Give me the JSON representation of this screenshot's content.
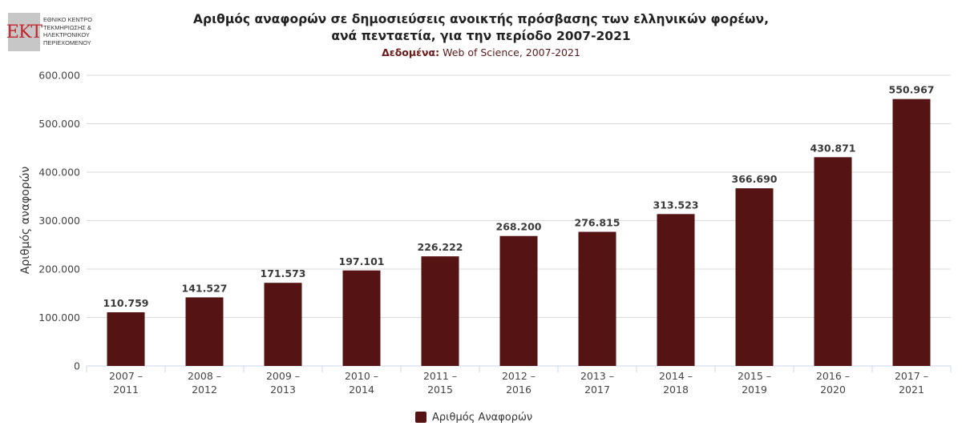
{
  "logo": {
    "mark": "EKT",
    "lines": [
      "ΕΘΝΙΚΟ ΚΕΝΤΡΟ",
      "ΤΕΚΜΗΡΙΩΣΗΣ &",
      "ΗΛΕΚΤΡΟΝΙΚΟΥ",
      "ΠΕΡΙΕΧΟΜΕΝΟΥ"
    ]
  },
  "colors": {
    "bar": "#561314",
    "grid": "#d9d9d9",
    "axis": "#ccd6eb"
  },
  "chart_data": {
    "type": "bar",
    "title_line1": "Αριθμός αναφορών σε δημοσιεύσεις ανοικτής πρόσβασης των ελληνικών φορέων,",
    "title_line2": "ανά πενταετία, για την περίοδο 2007-2021",
    "subtitle_label": "Δεδομένα:",
    "subtitle_text": "Web of Science, 2007-2021",
    "ylabel": "Αριθμός αναφορών",
    "ylim": [
      0,
      600000
    ],
    "yticks": [
      {
        "value": 0,
        "label": "0"
      },
      {
        "value": 100000,
        "label": "100.000"
      },
      {
        "value": 200000,
        "label": "200.000"
      },
      {
        "value": 300000,
        "label": "300.000"
      },
      {
        "value": 400000,
        "label": "400.000"
      },
      {
        "value": 500000,
        "label": "500.000"
      },
      {
        "value": 600000,
        "label": "600.000"
      }
    ],
    "categories": [
      [
        "2007 –",
        "2011"
      ],
      [
        "2008 –",
        "2012"
      ],
      [
        "2009 –",
        "2013"
      ],
      [
        "2010 –",
        "2014"
      ],
      [
        "2011 –",
        "2015"
      ],
      [
        "2012 –",
        "2016"
      ],
      [
        "2013 –",
        "2017"
      ],
      [
        "2014 –",
        "2018"
      ],
      [
        "2015 –",
        "2019"
      ],
      [
        "2016 –",
        "2020"
      ],
      [
        "2017 –",
        "2021"
      ]
    ],
    "series": [
      {
        "name": "Αριθμός Αναφορών",
        "values": [
          110759,
          141527,
          171573,
          197101,
          226222,
          268200,
          276815,
          313523,
          366690,
          430871,
          550967
        ],
        "labels": [
          "110.759",
          "141.527",
          "171.573",
          "197.101",
          "226.222",
          "268.200",
          "276.815",
          "313.523",
          "366.690",
          "430.871",
          "550.967"
        ]
      }
    ],
    "grid": true,
    "legend_position": "bottom-center"
  }
}
